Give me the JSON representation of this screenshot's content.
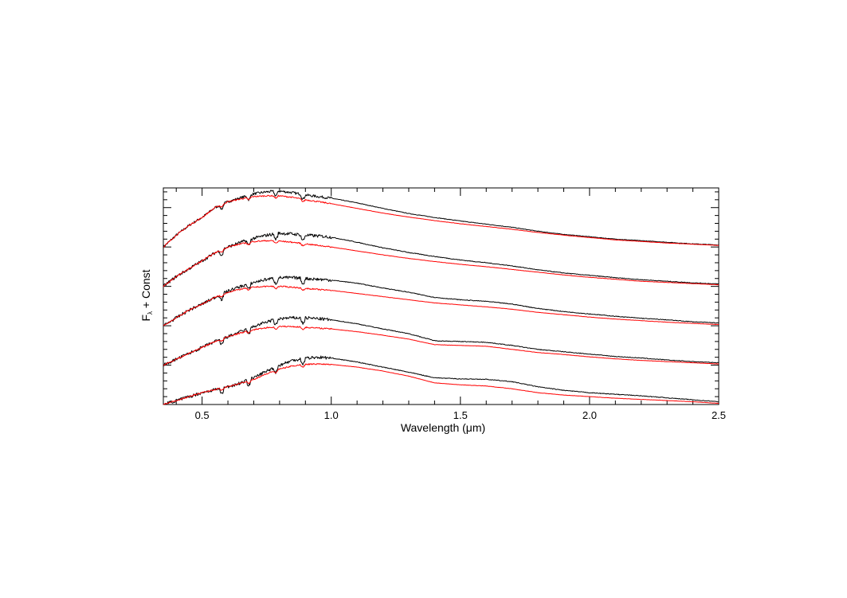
{
  "chart_data": {
    "type": "line",
    "xlabel": "Wavelength (μm)",
    "ylabel_main": "F",
    "ylabel_sub": "λ",
    "ylabel_rest": " + Const",
    "xlim": [
      0.35,
      2.5
    ],
    "ylim": [
      0,
      5.5
    ],
    "xticks": [
      {
        "value": 0.5,
        "label": "0.5"
      },
      {
        "value": 1.0,
        "label": "1.0"
      },
      {
        "value": 1.5,
        "label": "1.5"
      },
      {
        "value": 2.0,
        "label": "2.0"
      },
      {
        "value": 2.5,
        "label": "2.5"
      }
    ],
    "x_minor_step": 0.1,
    "y_major_ticks": [
      0,
      1,
      2,
      3,
      4,
      5
    ],
    "y_minor_step": 0.2,
    "y_tick_labels": false,
    "grid": false,
    "legend": "none",
    "colors": {
      "observed": "#000000",
      "model": "#ff0000"
    },
    "series_offsets": [
      4.0,
      3.0,
      2.0,
      1.0,
      0.0
    ],
    "spectra": [
      {
        "color": "observed",
        "offset": 4.0,
        "x": [
          0.35,
          0.4,
          0.45,
          0.5,
          0.55,
          0.6,
          0.65,
          0.7,
          0.75,
          0.8,
          0.85,
          0.9,
          0.95,
          1.0,
          1.1,
          1.2,
          1.3,
          1.4,
          1.5,
          1.6,
          1.7,
          1.8,
          1.9,
          2.0,
          2.1,
          2.2,
          2.3,
          2.4,
          2.5
        ],
        "y": [
          0.0,
          0.3,
          0.55,
          0.75,
          1.0,
          1.15,
          1.25,
          1.35,
          1.4,
          1.42,
          1.38,
          1.32,
          1.28,
          1.24,
          1.12,
          0.98,
          0.85,
          0.75,
          0.66,
          0.58,
          0.5,
          0.4,
          0.32,
          0.26,
          0.2,
          0.16,
          0.12,
          0.08,
          0.05
        ],
        "noise": 0.04
      },
      {
        "color": "model",
        "offset": 4.0,
        "x": [
          0.35,
          0.4,
          0.45,
          0.5,
          0.55,
          0.6,
          0.65,
          0.7,
          0.75,
          0.8,
          0.85,
          0.9,
          0.95,
          1.0,
          1.1,
          1.2,
          1.3,
          1.4,
          1.5,
          1.6,
          1.7,
          1.8,
          1.9,
          2.0,
          2.1,
          2.2,
          2.3,
          2.4,
          2.5
        ],
        "y": [
          0.0,
          0.3,
          0.55,
          0.75,
          1.0,
          1.15,
          1.22,
          1.28,
          1.3,
          1.3,
          1.26,
          1.2,
          1.15,
          1.1,
          0.98,
          0.86,
          0.76,
          0.67,
          0.59,
          0.52,
          0.45,
          0.37,
          0.3,
          0.24,
          0.18,
          0.14,
          0.1,
          0.07,
          0.04
        ],
        "noise": 0.02
      },
      {
        "color": "observed",
        "offset": 3.0,
        "x": [
          0.35,
          0.4,
          0.45,
          0.5,
          0.55,
          0.6,
          0.65,
          0.7,
          0.75,
          0.8,
          0.85,
          0.9,
          0.95,
          1.0,
          1.1,
          1.2,
          1.3,
          1.4,
          1.5,
          1.6,
          1.7,
          1.8,
          1.9,
          2.0,
          2.1,
          2.2,
          2.3,
          2.4,
          2.5
        ],
        "y": [
          0.0,
          0.25,
          0.45,
          0.65,
          0.85,
          1.0,
          1.12,
          1.22,
          1.3,
          1.35,
          1.33,
          1.3,
          1.28,
          1.25,
          1.12,
          0.98,
          0.86,
          0.76,
          0.67,
          0.6,
          0.52,
          0.42,
          0.34,
          0.28,
          0.22,
          0.17,
          0.13,
          0.09,
          0.06
        ],
        "noise": 0.05
      },
      {
        "color": "model",
        "offset": 3.0,
        "x": [
          0.35,
          0.4,
          0.45,
          0.5,
          0.55,
          0.6,
          0.65,
          0.7,
          0.75,
          0.8,
          0.85,
          0.9,
          0.95,
          1.0,
          1.1,
          1.2,
          1.3,
          1.4,
          1.5,
          1.6,
          1.7,
          1.8,
          1.9,
          2.0,
          2.1,
          2.2,
          2.3,
          2.4,
          2.5
        ],
        "y": [
          0.0,
          0.25,
          0.45,
          0.65,
          0.85,
          1.0,
          1.08,
          1.14,
          1.16,
          1.15,
          1.12,
          1.08,
          1.04,
          1.0,
          0.9,
          0.8,
          0.71,
          0.63,
          0.56,
          0.5,
          0.43,
          0.36,
          0.29,
          0.23,
          0.18,
          0.13,
          0.1,
          0.07,
          0.04
        ],
        "noise": 0.02
      },
      {
        "color": "observed",
        "offset": 2.0,
        "x": [
          0.35,
          0.4,
          0.45,
          0.5,
          0.55,
          0.6,
          0.65,
          0.7,
          0.75,
          0.8,
          0.85,
          0.9,
          0.95,
          1.0,
          1.1,
          1.2,
          1.3,
          1.4,
          1.5,
          1.6,
          1.7,
          1.8,
          1.9,
          2.0,
          2.1,
          2.2,
          2.3,
          2.4,
          2.5
        ],
        "y": [
          0.0,
          0.2,
          0.4,
          0.55,
          0.72,
          0.88,
          1.0,
          1.1,
          1.18,
          1.22,
          1.22,
          1.2,
          1.18,
          1.16,
          1.08,
          0.96,
          0.85,
          0.72,
          0.66,
          0.62,
          0.55,
          0.44,
          0.36,
          0.3,
          0.24,
          0.19,
          0.15,
          0.1,
          0.07
        ],
        "noise": 0.05
      },
      {
        "color": "model",
        "offset": 2.0,
        "x": [
          0.35,
          0.4,
          0.45,
          0.5,
          0.55,
          0.6,
          0.65,
          0.7,
          0.75,
          0.8,
          0.85,
          0.9,
          0.95,
          1.0,
          1.1,
          1.2,
          1.3,
          1.4,
          1.5,
          1.6,
          1.7,
          1.8,
          1.9,
          2.0,
          2.1,
          2.2,
          2.3,
          2.4,
          2.5
        ],
        "y": [
          0.0,
          0.2,
          0.4,
          0.55,
          0.72,
          0.85,
          0.93,
          0.98,
          1.0,
          1.0,
          0.98,
          0.95,
          0.92,
          0.9,
          0.82,
          0.74,
          0.66,
          0.58,
          0.53,
          0.48,
          0.42,
          0.34,
          0.28,
          0.22,
          0.17,
          0.13,
          0.09,
          0.06,
          0.03
        ],
        "noise": 0.02
      },
      {
        "color": "observed",
        "offset": 1.0,
        "x": [
          0.35,
          0.4,
          0.45,
          0.5,
          0.55,
          0.6,
          0.65,
          0.7,
          0.75,
          0.8,
          0.85,
          0.9,
          0.95,
          1.0,
          1.1,
          1.2,
          1.3,
          1.4,
          1.5,
          1.6,
          1.7,
          1.8,
          1.9,
          2.0,
          2.1,
          2.2,
          2.3,
          2.4,
          2.5
        ],
        "y": [
          0.0,
          0.15,
          0.3,
          0.45,
          0.6,
          0.72,
          0.85,
          0.98,
          1.1,
          1.18,
          1.2,
          1.2,
          1.18,
          1.15,
          1.05,
          0.92,
          0.8,
          0.62,
          0.6,
          0.58,
          0.5,
          0.4,
          0.34,
          0.28,
          0.22,
          0.18,
          0.13,
          0.09,
          0.06
        ],
        "noise": 0.05
      },
      {
        "color": "model",
        "offset": 1.0,
        "x": [
          0.35,
          0.4,
          0.45,
          0.5,
          0.55,
          0.6,
          0.65,
          0.7,
          0.75,
          0.8,
          0.85,
          0.9,
          0.95,
          1.0,
          1.1,
          1.2,
          1.3,
          1.4,
          1.5,
          1.6,
          1.7,
          1.8,
          1.9,
          2.0,
          2.1,
          2.2,
          2.3,
          2.4,
          2.5
        ],
        "y": [
          0.0,
          0.15,
          0.3,
          0.45,
          0.6,
          0.72,
          0.82,
          0.9,
          0.95,
          0.98,
          0.98,
          0.96,
          0.94,
          0.92,
          0.85,
          0.76,
          0.66,
          0.52,
          0.5,
          0.48,
          0.4,
          0.32,
          0.27,
          0.21,
          0.16,
          0.12,
          0.09,
          0.06,
          0.03
        ],
        "noise": 0.02
      },
      {
        "color": "observed",
        "offset": 0.0,
        "x": [
          0.35,
          0.4,
          0.45,
          0.5,
          0.55,
          0.6,
          0.65,
          0.7,
          0.75,
          0.8,
          0.85,
          0.9,
          0.95,
          1.0,
          1.1,
          1.2,
          1.3,
          1.4,
          1.5,
          1.6,
          1.7,
          1.8,
          1.9,
          2.0,
          2.1,
          2.2,
          2.3,
          2.4,
          2.5
        ],
        "y": [
          0.0,
          0.1,
          0.2,
          0.3,
          0.38,
          0.45,
          0.55,
          0.68,
          0.85,
          1.0,
          1.12,
          1.18,
          1.2,
          1.18,
          1.08,
          0.95,
          0.82,
          0.68,
          0.65,
          0.64,
          0.58,
          0.45,
          0.36,
          0.3,
          0.26,
          0.22,
          0.17,
          0.12,
          0.07
        ],
        "noise": 0.05
      },
      {
        "color": "model",
        "offset": 0.0,
        "x": [
          0.35,
          0.4,
          0.45,
          0.5,
          0.55,
          0.6,
          0.65,
          0.7,
          0.75,
          0.8,
          0.85,
          0.9,
          0.95,
          1.0,
          1.1,
          1.2,
          1.3,
          1.4,
          1.5,
          1.6,
          1.7,
          1.8,
          1.9,
          2.0,
          2.1,
          2.2,
          2.3,
          2.4,
          2.5
        ],
        "y": [
          0.0,
          0.1,
          0.2,
          0.3,
          0.38,
          0.45,
          0.54,
          0.64,
          0.78,
          0.9,
          0.98,
          1.02,
          1.03,
          1.02,
          0.95,
          0.85,
          0.72,
          0.55,
          0.5,
          0.47,
          0.4,
          0.3,
          0.24,
          0.2,
          0.16,
          0.13,
          0.1,
          0.07,
          0.03
        ],
        "noise": 0.02
      }
    ]
  }
}
